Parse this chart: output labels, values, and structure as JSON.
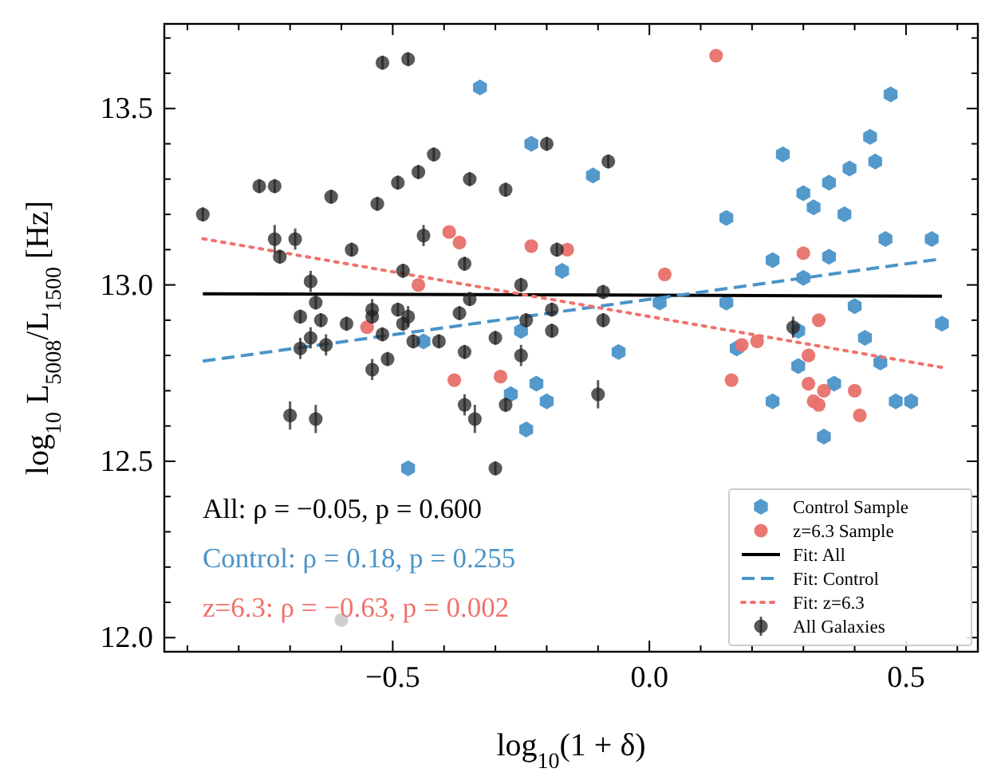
{
  "chart_data": {
    "type": "scatter",
    "xlabel": "log$_{10}$(1 + δ)",
    "ylabel": "log$_{10}$ L$_{5008}$/L$_{1500}$ [Hz]",
    "xlim": [
      -0.945,
      0.64
    ],
    "ylim": [
      11.96,
      13.74
    ],
    "xticks": [
      {
        "value": -0.9,
        "label": null
      },
      {
        "value": -0.8,
        "label": null
      },
      {
        "value": -0.7,
        "label": null
      },
      {
        "value": -0.6,
        "label": null
      },
      {
        "value": -0.5,
        "label": "−0.5"
      },
      {
        "value": -0.4,
        "label": null
      },
      {
        "value": -0.3,
        "label": null
      },
      {
        "value": -0.2,
        "label": null
      },
      {
        "value": -0.1,
        "label": null
      },
      {
        "value": 0,
        "label": "0.0"
      },
      {
        "value": 0.1,
        "label": null
      },
      {
        "value": 0.2,
        "label": null
      },
      {
        "value": 0.3,
        "label": null
      },
      {
        "value": 0.4,
        "label": null
      },
      0.5,
      {
        "value": 0.6,
        "label": null
      }
    ],
    "yticks": [
      {
        "value": 12,
        "label": "12.0"
      },
      {
        "value": 12.1,
        "label": null
      },
      {
        "value": 12.2,
        "label": null
      },
      {
        "value": 12.3,
        "label": null
      },
      {
        "value": 12.4,
        "label": null
      },
      12.5,
      {
        "value": 12.6,
        "label": null
      },
      {
        "value": 12.7,
        "label": null
      },
      {
        "value": 12.8,
        "label": null
      },
      {
        "value": 12.9,
        "label": null
      },
      {
        "value": 13,
        "label": "13.0"
      },
      {
        "value": 13.1,
        "label": null
      },
      {
        "value": 13.2,
        "label": null
      },
      {
        "value": 13.3,
        "label": null
      },
      {
        "value": 13.4,
        "label": null
      },
      13.5,
      {
        "value": 13.6,
        "label": null
      },
      {
        "value": 13.7,
        "label": null
      }
    ],
    "grid": false,
    "legend": "bottom right",
    "annotations": [
      "All: ρ = −0.05,  p = 0.600",
      "Control: ρ = 0.18,  p = 0.255",
      "z=6.3: ρ = −0.63,  p = 0.002"
    ],
    "series": [
      {
        "name": "Control Sample",
        "color": "#4a94c8",
        "x": [
          -0.33,
          -0.23,
          -0.17,
          -0.25,
          -0.44,
          0.47,
          0.43,
          0.44,
          0.39,
          0.35,
          0.26,
          0.3,
          0.32,
          0.38,
          -0.11,
          0.15,
          0.46,
          0.55,
          0.24,
          0.35,
          0.3,
          0.02,
          0.15,
          0.4,
          0.57,
          -0.27,
          -0.22,
          -0.2,
          -0.24,
          -0.47,
          -0.06,
          0.17,
          0.29,
          0.42,
          0.45,
          0.29,
          0.36,
          0.24,
          0.48,
          0.51,
          0.34
        ],
        "values": [
          13.56,
          13.4,
          13.04,
          12.87,
          12.84,
          13.54,
          13.42,
          13.35,
          13.33,
          13.29,
          13.37,
          13.26,
          13.22,
          13.2,
          13.31,
          13.19,
          13.13,
          13.13,
          13.07,
          13.08,
          13.02,
          12.95,
          12.95,
          12.94,
          12.89,
          12.69,
          12.72,
          12.67,
          12.59,
          12.48,
          12.81,
          12.82,
          12.87,
          12.85,
          12.78,
          12.77,
          12.72,
          12.67,
          12.67,
          12.67,
          12.57
        ]
      },
      {
        "name": "z=6.3 Sample",
        "marker": "circle",
        "color": "#e8706a",
        "x": [
          -0.39,
          -0.37,
          -0.23,
          -0.16,
          -0.45,
          -0.55,
          0.13,
          0.03,
          0.3,
          0.33,
          -0.38,
          -0.29,
          0.18,
          0.21,
          0.31,
          0.16,
          0.31,
          0.34,
          0.32,
          0.33,
          0.4,
          0.41
        ],
        "values": [
          13.15,
          13.12,
          13.11,
          13.1,
          13.0,
          12.88,
          13.65,
          13.03,
          13.09,
          12.9,
          12.73,
          12.74,
          12.83,
          12.84,
          12.8,
          12.73,
          12.72,
          12.7,
          12.67,
          12.66,
          12.7,
          12.63
        ]
      },
      {
        "name": "Fit: All",
        "type": "line",
        "line_style": "solid",
        "color": "#000000",
        "x": [
          -0.87,
          0.57
        ],
        "values": [
          12.975,
          12.968
        ]
      },
      {
        "name": "Fit: Control",
        "type": "line",
        "line_style": "dashed",
        "color": "#4a94c8",
        "x": [
          -0.87,
          0.57
        ],
        "values": [
          12.784,
          13.074
        ]
      },
      {
        "name": "Fit: z=6.3",
        "type": "line",
        "line_style": "dotted",
        "color": "#f0716b",
        "x": [
          -0.87,
          0.57
        ],
        "values": [
          13.131,
          12.766
        ]
      },
      {
        "name": "All Galaxies",
        "marker": "circle",
        "color": "#222222",
        "x": [
          -0.52,
          -0.47,
          -0.76,
          -0.73,
          -0.62,
          -0.87,
          -0.53,
          -0.49,
          -0.45,
          -0.42,
          -0.35,
          -0.28,
          -0.2,
          -0.08,
          -0.73,
          -0.69,
          -0.72,
          -0.58,
          -0.44,
          -0.36,
          -0.48,
          -0.66,
          -0.25,
          -0.18,
          -0.09,
          -0.65,
          -0.68,
          -0.64,
          -0.59,
          -0.54,
          -0.54,
          -0.49,
          -0.47,
          -0.48,
          -0.37,
          -0.35,
          -0.19,
          -0.19,
          -0.24,
          -0.3,
          -0.52,
          -0.66,
          -0.09,
          0.28,
          -0.68,
          -0.63,
          -0.54,
          -0.51,
          -0.46,
          -0.41,
          -0.36,
          -0.25,
          -0.7,
          -0.65,
          -0.36,
          -0.34,
          -0.28,
          -0.3,
          -0.1
        ],
        "values": [
          13.63,
          13.64,
          13.28,
          13.28,
          13.25,
          13.2,
          13.23,
          13.29,
          13.32,
          13.37,
          13.3,
          13.27,
          13.4,
          13.35,
          13.13,
          13.13,
          13.08,
          13.1,
          13.14,
          13.06,
          13.04,
          13.01,
          13.0,
          13.1,
          12.98,
          12.95,
          12.91,
          12.9,
          12.89,
          12.93,
          12.91,
          12.93,
          12.91,
          12.89,
          12.92,
          12.96,
          12.93,
          12.87,
          12.9,
          12.85,
          12.86,
          12.85,
          12.9,
          12.88,
          12.82,
          12.83,
          12.76,
          12.79,
          12.84,
          12.84,
          12.81,
          12.8,
          12.63,
          12.62,
          12.66,
          12.62,
          12.66,
          12.48,
          12.69
        ],
        "errors": [
          0.02,
          0.02,
          0.02,
          0.02,
          0.02,
          0.02,
          0.02,
          0.02,
          0.02,
          0.02,
          0.02,
          0.02,
          0.02,
          0.02,
          0.04,
          0.03,
          0.02,
          0.02,
          0.03,
          0.02,
          0.02,
          0.03,
          0.02,
          0.02,
          0.02,
          0.02,
          0.02,
          0.02,
          0.02,
          0.03,
          0.02,
          0.02,
          0.03,
          0.02,
          0.02,
          0.02,
          0.02,
          0.02,
          0.02,
          0.02,
          0.02,
          0.03,
          0.02,
          0.03,
          0.03,
          0.03,
          0.03,
          0.02,
          0.02,
          0.02,
          0.02,
          0.03,
          0.04,
          0.04,
          0.03,
          0.04,
          0.02,
          0.02,
          0.04
        ]
      },
      {
        "marker": "circle",
        "color": "#cccccc",
        "x": [
          -0.6
        ],
        "values": [
          12.05
        ]
      }
    ]
  }
}
